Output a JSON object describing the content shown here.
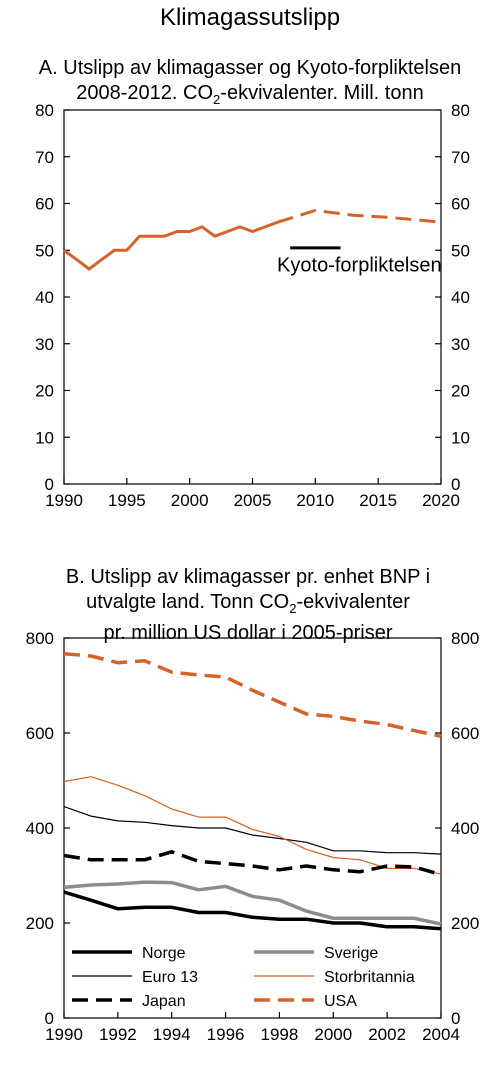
{
  "figure_title": "Klimagassutslipp",
  "panel_a": {
    "title_line1": "A. Utslipp av klimagasser og Kyoto-forpliktelsen",
    "title_line2_pre": "2008-2012. CO",
    "title_line2_sub": "2",
    "title_line2_post": "-ekvivalenter. Mill. tonn"
  },
  "panel_b": {
    "title_line1": "B. Utslipp av klimagasser pr. enhet BNP i",
    "title_line2_pre": "utvalgte land. Tonn CO",
    "title_line2_sub": "2",
    "title_line2_post": "-ekvivalenter",
    "title_line3": "pr. million US dollar i 2005-priser"
  },
  "chart_data": [
    {
      "type": "line",
      "title": "A. Utslipp av klimagasser og Kyoto-forpliktelsen 2008-2012. CO2-ekvivalenter. Mill. tonn",
      "xlim": [
        1990,
        2020
      ],
      "ylim": [
        0,
        80
      ],
      "xticks": [
        1990,
        1995,
        2000,
        2005,
        2010,
        2015,
        2020
      ],
      "yticks": [
        0,
        10,
        20,
        30,
        40,
        50,
        60,
        70,
        80
      ],
      "grid": false,
      "series": [
        {
          "color": "#d4622a",
          "style": "solid",
          "x": [
            1990,
            1991,
            1992,
            1993,
            1994,
            1995,
            1996,
            1997,
            1998,
            1999,
            2000,
            2001,
            2002,
            2003,
            2004,
            2005,
            2006,
            2007
          ],
          "y": [
            50,
            48,
            46,
            48,
            50,
            50,
            53,
            53,
            53,
            54,
            54,
            55,
            53,
            54,
            55,
            54,
            55,
            56
          ]
        },
        {
          "color": "#d4622a",
          "style": "dashed",
          "x": [
            2007,
            2010,
            2013,
            2016,
            2020
          ],
          "y": [
            56,
            58.5,
            57.5,
            57,
            56
          ]
        },
        {
          "color": "#000000",
          "style": "solid",
          "x": [
            2008,
            2012
          ],
          "y": [
            50.5,
            50.5
          ]
        }
      ],
      "annotations": [
        {
          "text": "Kyoto-forpliktelsen",
          "x": 2013.5,
          "y": 45.5
        }
      ]
    },
    {
      "type": "line",
      "title": "B. Utslipp av klimagasser pr. enhet BNP i utvalgte land. Tonn CO2-ekvivalenter pr. million US dollar i 2005-priser",
      "xlim": [
        1990,
        2004
      ],
      "ylim": [
        0,
        800
      ],
      "xticks": [
        1990,
        1992,
        1994,
        1996,
        1998,
        2000,
        2002,
        2004
      ],
      "yticks": [
        0,
        200,
        400,
        600,
        800
      ],
      "grid": false,
      "legend_position": "bottom-inside",
      "x": [
        1990,
        1991,
        1992,
        1993,
        1994,
        1995,
        1996,
        1997,
        1998,
        1999,
        2000,
        2001,
        2002,
        2003,
        2004
      ],
      "series": [
        {
          "name": "Norge",
          "color": "#000000",
          "width": 3.5,
          "style": "solid",
          "values": [
            265,
            248,
            230,
            233,
            233,
            222,
            222,
            212,
            208,
            208,
            200,
            200,
            192,
            192,
            188
          ]
        },
        {
          "name": "Sverige",
          "color": "#8c8c8c",
          "width": 3.5,
          "style": "solid",
          "values": [
            275,
            280,
            282,
            286,
            285,
            270,
            277,
            256,
            248,
            225,
            210,
            210,
            210,
            210,
            198
          ]
        },
        {
          "name": "Euro 13",
          "color": "#000000",
          "width": 1.2,
          "style": "solid",
          "values": [
            445,
            425,
            415,
            412,
            405,
            400,
            400,
            385,
            378,
            370,
            352,
            352,
            348,
            348,
            345
          ]
        },
        {
          "name": "Storbritannia",
          "color": "#d4622a",
          "width": 1.2,
          "style": "solid",
          "values": [
            498,
            508,
            490,
            468,
            440,
            423,
            423,
            397,
            382,
            355,
            338,
            333,
            315,
            315,
            303
          ]
        },
        {
          "name": "Japan",
          "color": "#000000",
          "width": 3.5,
          "style": "dashed",
          "values": [
            342,
            333,
            333,
            333,
            350,
            330,
            325,
            320,
            312,
            320,
            312,
            308,
            320,
            318,
            302
          ]
        },
        {
          "name": "USA",
          "color": "#d4622a",
          "width": 3.5,
          "style": "dashed",
          "values": [
            767,
            762,
            748,
            752,
            728,
            722,
            718,
            690,
            665,
            640,
            635,
            625,
            618,
            605,
            593
          ]
        }
      ]
    }
  ]
}
